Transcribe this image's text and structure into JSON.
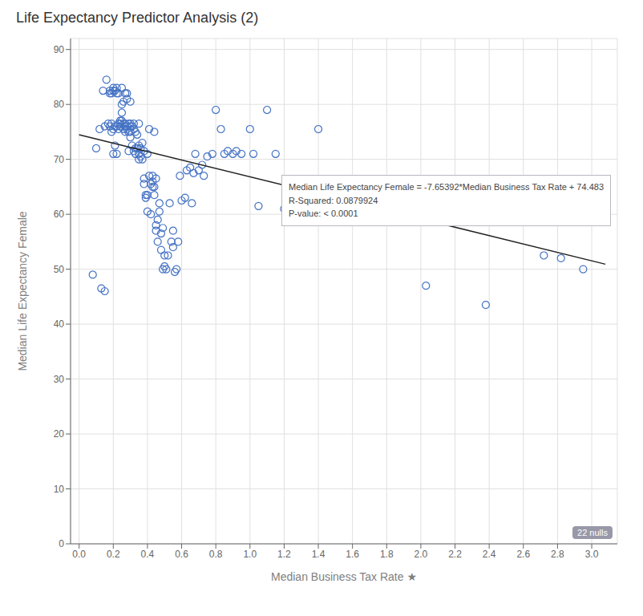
{
  "chart_data": {
    "type": "scatter",
    "title": "Life Expectancy Predictor Analysis (2)",
    "xlabel": "Median Business Tax Rate ★",
    "ylabel": "Median Life Expectancy Female",
    "xlim": [
      -0.05,
      3.15
    ],
    "ylim": [
      0,
      92
    ],
    "xticks": [
      {
        "value": 0.0,
        "label": "0.0"
      },
      0.2,
      0.4,
      0.6,
      0.8,
      {
        "value": 1.0,
        "label": "1.0"
      },
      1.2,
      1.4,
      1.6,
      1.8,
      {
        "value": 2.0,
        "label": "2.0"
      },
      2.2,
      2.4,
      2.6,
      2.8,
      {
        "value": 3.0,
        "label": "3.0"
      }
    ],
    "yticks": [
      0,
      10,
      20,
      30,
      40,
      50,
      60,
      70,
      80,
      90
    ],
    "grid": true,
    "color": "#4472C4",
    "marker": "circle",
    "x": [
      0.08,
      0.1,
      0.12,
      0.13,
      0.14,
      0.15,
      0.15,
      0.16,
      0.17,
      0.18,
      0.18,
      0.18,
      0.19,
      0.19,
      0.19,
      0.2,
      0.2,
      0.2,
      0.2,
      0.21,
      0.21,
      0.21,
      0.22,
      0.22,
      0.22,
      0.22,
      0.23,
      0.23,
      0.23,
      0.24,
      0.24,
      0.24,
      0.25,
      0.25,
      0.25,
      0.25,
      0.26,
      0.26,
      0.26,
      0.27,
      0.27,
      0.27,
      0.27,
      0.28,
      0.28,
      0.28,
      0.28,
      0.29,
      0.29,
      0.29,
      0.3,
      0.3,
      0.3,
      0.3,
      0.3,
      0.31,
      0.31,
      0.32,
      0.32,
      0.32,
      0.33,
      0.33,
      0.33,
      0.34,
      0.34,
      0.35,
      0.35,
      0.35,
      0.35,
      0.36,
      0.36,
      0.37,
      0.37,
      0.38,
      0.38,
      0.38,
      0.39,
      0.39,
      0.4,
      0.4,
      0.4,
      0.41,
      0.41,
      0.42,
      0.42,
      0.43,
      0.43,
      0.43,
      0.44,
      0.44,
      0.44,
      0.45,
      0.45,
      0.45,
      0.46,
      0.46,
      0.47,
      0.47,
      0.48,
      0.48,
      0.49,
      0.49,
      0.5,
      0.5,
      0.51,
      0.52,
      0.53,
      0.54,
      0.55,
      0.55,
      0.56,
      0.57,
      0.58,
      0.59,
      0.6,
      0.62,
      0.63,
      0.65,
      0.66,
      0.67,
      0.68,
      0.7,
      0.72,
      0.73,
      0.75,
      0.78,
      0.8,
      0.83,
      0.85,
      0.87,
      0.9,
      0.92,
      0.95,
      1.0,
      1.02,
      1.05,
      1.1,
      1.15,
      1.2,
      1.4,
      2.03,
      2.38,
      2.72,
      2.82,
      2.95
    ],
    "values": [
      49.0,
      72.0,
      75.5,
      46.5,
      82.5,
      46.0,
      76.0,
      84.5,
      76.5,
      82.0,
      82.5,
      76.0,
      75.0,
      82.0,
      76.5,
      83.0,
      82.5,
      75.5,
      71.0,
      82.5,
      72.5,
      76.0,
      82.0,
      83.0,
      76.0,
      71.0,
      75.5,
      76.5,
      82.0,
      76.0,
      77.0,
      76.5,
      78.5,
      77.0,
      80.0,
      83.0,
      75.5,
      80.5,
      76.5,
      76.5,
      75.0,
      82.0,
      76.0,
      75.5,
      76.0,
      81.0,
      82.0,
      75.0,
      76.5,
      71.5,
      74.0,
      75.0,
      76.0,
      76.5,
      80.5,
      72.5,
      76.0,
      71.5,
      75.5,
      76.5,
      71.0,
      75.0,
      72.0,
      72.0,
      74.5,
      71.0,
      72.5,
      76.5,
      70.0,
      70.5,
      72.0,
      70.0,
      73.0,
      65.5,
      66.5,
      71.5,
      63.0,
      63.5,
      60.5,
      63.5,
      71.0,
      67.0,
      75.5,
      60.0,
      65.5,
      65.0,
      67.0,
      66.0,
      63.5,
      65.0,
      75.0,
      57.0,
      58.0,
      66.5,
      55.0,
      59.0,
      62.0,
      60.5,
      53.5,
      56.5,
      50.0,
      57.5,
      50.5,
      52.5,
      50.0,
      52.5,
      62.0,
      55.0,
      54.0,
      57.0,
      49.5,
      50.0,
      55.0,
      67.0,
      62.5,
      63.0,
      68.0,
      68.5,
      62.0,
      67.5,
      71.0,
      68.0,
      69.0,
      67.0,
      70.5,
      71.0,
      79.0,
      75.5,
      71.0,
      71.5,
      71.0,
      71.5,
      71.0,
      75.5,
      71.0,
      61.5,
      79.0,
      71.0,
      61.0,
      75.5,
      47.0,
      43.5,
      52.5,
      52.0,
      50.0
    ],
    "regression_line": {
      "type": "line",
      "color": "#222222",
      "x": [
        0.0,
        3.08
      ],
      "values": [
        74.483,
        50.9089264
      ]
    },
    "annotations": [
      "Median Life Expectancy Female = -7.65392*Median Business Tax Rate + 74.483",
      "R-Squared: 0.0879924",
      "P-value: < 0.0001"
    ],
    "footnote": "22 nulls"
  }
}
